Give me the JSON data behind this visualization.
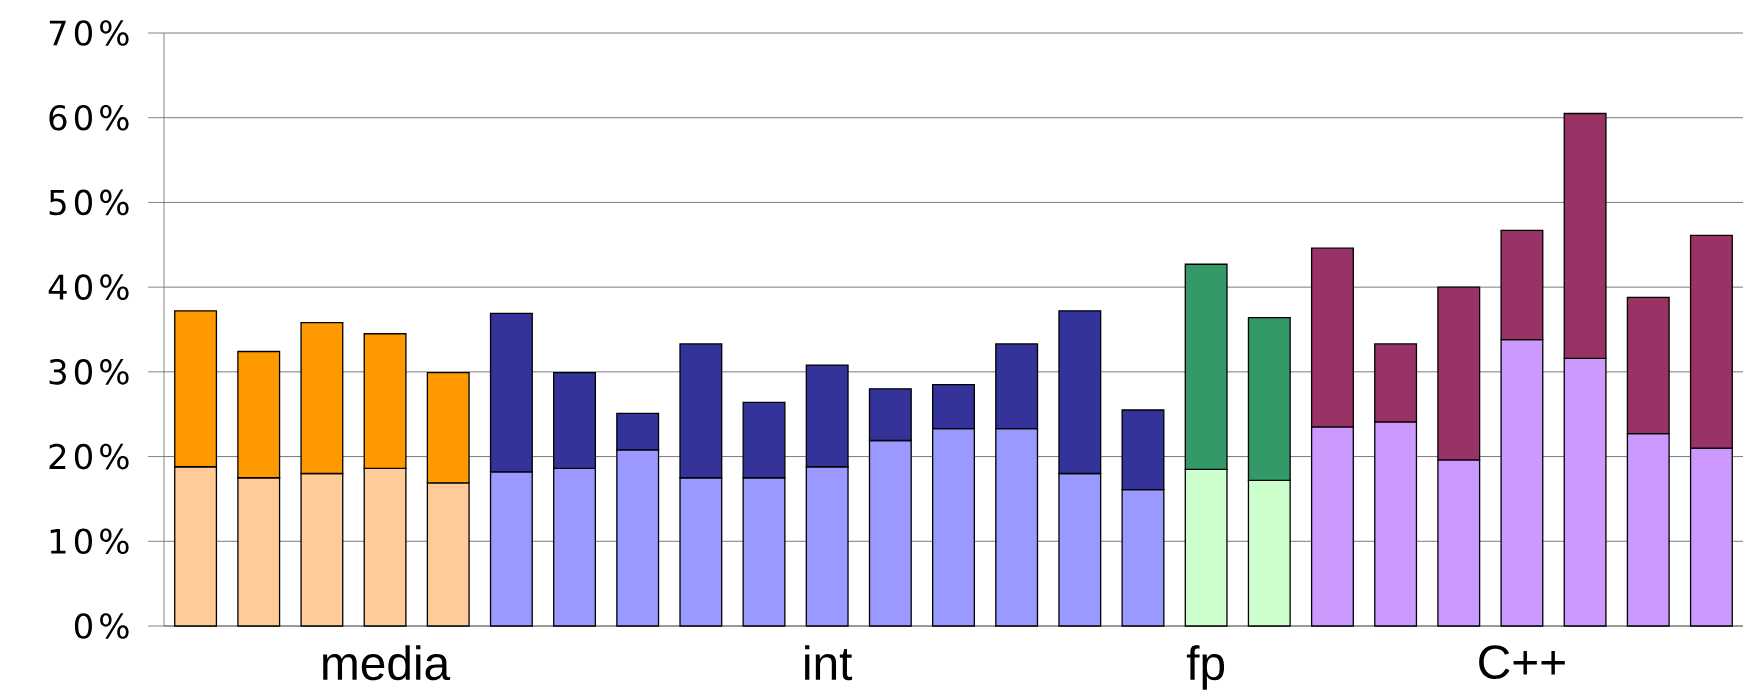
{
  "chart_data": {
    "type": "bar",
    "stacked": true,
    "categories": [
      null,
      null,
      null,
      "media",
      null,
      null,
      null,
      null,
      null,
      null,
      "int",
      null,
      null,
      null,
      null,
      null,
      "fp",
      null,
      null,
      null,
      null,
      "C++",
      null,
      null,
      null
    ],
    "series": [
      {
        "colors": [
          "#ffcc99",
          "#ffcc99",
          "#ffcc99",
          "#ffcc99",
          "#ffcc99",
          "#9999ff",
          "#9999ff",
          "#9999ff",
          "#9999ff",
          "#9999ff",
          "#9999ff",
          "#9999ff",
          "#9999ff",
          "#9999ff",
          "#9999ff",
          "#9999ff",
          "#ccffcc",
          "#ccffcc",
          "#cc99ff",
          "#cc99ff",
          "#cc99ff",
          "#cc99ff",
          "#cc99ff",
          "#cc99ff",
          "#cc99ff"
        ],
        "values": [
          18.8,
          17.5,
          18.0,
          18.6,
          16.9,
          18.2,
          18.6,
          20.8,
          17.5,
          17.5,
          18.8,
          21.9,
          23.3,
          23.3,
          18.0,
          16.1,
          18.5,
          17.2,
          23.5,
          24.1,
          19.6,
          33.8,
          31.6,
          22.7,
          21.0
        ]
      },
      {
        "colors": [
          "#ff9900",
          "#ff9900",
          "#ff9900",
          "#ff9900",
          "#ff9900",
          "#333399",
          "#333399",
          "#333399",
          "#333399",
          "#333399",
          "#333399",
          "#333399",
          "#333399",
          "#333399",
          "#333399",
          "#333399",
          "#339966",
          "#339966",
          "#993366",
          "#993366",
          "#993366",
          "#993366",
          "#993366",
          "#993366",
          "#993366"
        ],
        "values": [
          18.4,
          14.9,
          17.8,
          15.9,
          13.0,
          18.7,
          11.3,
          4.3,
          15.8,
          8.9,
          12.0,
          6.1,
          5.2,
          10.0,
          19.2,
          9.4,
          24.2,
          19.2,
          21.1,
          9.2,
          20.4,
          12.9,
          28.9,
          16.1,
          25.1
        ]
      }
    ],
    "ylim": [
      0,
      70
    ],
    "yticks": [
      {
        "value": 0,
        "label": "0%"
      },
      {
        "value": 10,
        "label": "10%"
      },
      {
        "value": 20,
        "label": "20%"
      },
      {
        "value": 30,
        "label": "30%"
      },
      {
        "value": 40,
        "label": "40%"
      },
      {
        "value": 50,
        "label": "50%"
      },
      {
        "value": 60,
        "label": "60%"
      },
      {
        "value": 70,
        "label": "70%"
      }
    ],
    "grid": "y"
  }
}
